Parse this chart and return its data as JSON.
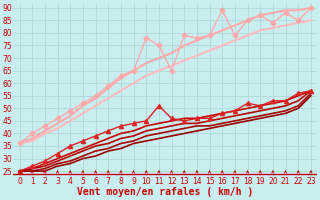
{
  "title": "",
  "xlabel": "Vent moyen/en rafales ( km/h )",
  "ylabel": "",
  "background_color": "#c8eef0",
  "grid_color": "#b0d8da",
  "xlim": [
    -0.5,
    23.5
  ],
  "ylim": [
    23,
    92
  ],
  "yticks": [
    25,
    30,
    35,
    40,
    45,
    50,
    55,
    60,
    65,
    70,
    75,
    80,
    85,
    90
  ],
  "xticks": [
    0,
    1,
    2,
    3,
    4,
    5,
    6,
    7,
    8,
    9,
    10,
    11,
    12,
    13,
    14,
    15,
    16,
    17,
    18,
    19,
    20,
    21,
    22,
    23
  ],
  "lines": [
    {
      "x": [
        0,
        1,
        2,
        3,
        4,
        5,
        6,
        7,
        8,
        9,
        10,
        11,
        12,
        13,
        14,
        15,
        16,
        17,
        18,
        19,
        20,
        21,
        22,
        23
      ],
      "y": [
        36,
        40,
        43,
        46,
        49,
        52,
        55,
        59,
        63,
        65,
        78,
        75,
        65,
        79,
        78,
        79,
        89,
        79,
        85,
        87,
        84,
        88,
        85,
        90
      ],
      "color": "#ffaaaa",
      "linewidth": 1.0,
      "marker": "D",
      "markersize": 2.5
    },
    {
      "x": [
        0,
        1,
        2,
        3,
        4,
        5,
        6,
        7,
        8,
        9,
        10,
        11,
        12,
        13,
        14,
        15,
        16,
        17,
        18,
        19,
        20,
        21,
        22,
        23
      ],
      "y": [
        36,
        38,
        41,
        44,
        47,
        51,
        54,
        58,
        62,
        65,
        68,
        70,
        72,
        75,
        77,
        79,
        81,
        83,
        85,
        87,
        88,
        89,
        89,
        90
      ],
      "color": "#ffaaaa",
      "linewidth": 1.5,
      "marker": null,
      "markersize": 0
    },
    {
      "x": [
        0,
        1,
        2,
        3,
        4,
        5,
        6,
        7,
        8,
        9,
        10,
        11,
        12,
        13,
        14,
        15,
        16,
        17,
        18,
        19,
        20,
        21,
        22,
        23
      ],
      "y": [
        36,
        37,
        40,
        42,
        45,
        48,
        51,
        54,
        57,
        60,
        63,
        65,
        67,
        69,
        71,
        73,
        75,
        77,
        79,
        81,
        82,
        83,
        84,
        85
      ],
      "color": "#ffbbbb",
      "linewidth": 1.5,
      "marker": null,
      "markersize": 0
    },
    {
      "x": [
        0,
        1,
        2,
        3,
        4,
        5,
        6,
        7,
        8,
        9,
        10,
        11,
        12,
        13,
        14,
        15,
        16,
        17,
        18,
        19,
        20,
        21,
        22,
        23
      ],
      "y": [
        25,
        27,
        29,
        32,
        35,
        37,
        39,
        41,
        43,
        44,
        45,
        51,
        46,
        45,
        46,
        46,
        48,
        49,
        52,
        51,
        53,
        53,
        56,
        57
      ],
      "color": "#dd2222",
      "linewidth": 1.0,
      "marker": "^",
      "markersize": 3
    },
    {
      "x": [
        0,
        1,
        2,
        3,
        4,
        5,
        6,
        7,
        8,
        9,
        10,
        11,
        12,
        13,
        14,
        15,
        16,
        17,
        18,
        19,
        20,
        21,
        22,
        23
      ],
      "y": [
        25,
        26,
        28,
        30,
        32,
        34,
        36,
        38,
        40,
        41,
        43,
        44,
        45,
        46,
        46,
        47,
        48,
        49,
        50,
        51,
        52,
        53,
        55,
        57
      ],
      "color": "#cc0000",
      "linewidth": 1.2,
      "marker": null,
      "markersize": 0
    },
    {
      "x": [
        0,
        1,
        2,
        3,
        4,
        5,
        6,
        7,
        8,
        9,
        10,
        11,
        12,
        13,
        14,
        15,
        16,
        17,
        18,
        19,
        20,
        21,
        22,
        23
      ],
      "y": [
        25,
        26,
        27,
        29,
        31,
        33,
        35,
        36,
        38,
        39,
        41,
        42,
        43,
        44,
        44,
        45,
        46,
        47,
        48,
        49,
        50,
        51,
        53,
        57
      ],
      "color": "#bb0000",
      "linewidth": 1.2,
      "marker": null,
      "markersize": 0
    },
    {
      "x": [
        0,
        1,
        2,
        3,
        4,
        5,
        6,
        7,
        8,
        9,
        10,
        11,
        12,
        13,
        14,
        15,
        16,
        17,
        18,
        19,
        20,
        21,
        22,
        23
      ],
      "y": [
        25,
        25,
        26,
        28,
        29,
        31,
        33,
        34,
        36,
        37,
        39,
        40,
        41,
        42,
        43,
        43,
        44,
        45,
        46,
        47,
        48,
        49,
        51,
        56
      ],
      "color": "#aa0000",
      "linewidth": 1.2,
      "marker": null,
      "markersize": 0
    },
    {
      "x": [
        0,
        1,
        2,
        3,
        4,
        5,
        6,
        7,
        8,
        9,
        10,
        11,
        12,
        13,
        14,
        15,
        16,
        17,
        18,
        19,
        20,
        21,
        22,
        23
      ],
      "y": [
        25,
        25,
        25,
        27,
        28,
        30,
        31,
        33,
        34,
        36,
        37,
        38,
        39,
        40,
        41,
        42,
        43,
        44,
        45,
        46,
        47,
        48,
        50,
        55
      ],
      "color": "#990000",
      "linewidth": 1.2,
      "marker": null,
      "markersize": 0
    }
  ],
  "arrow_color": "#cc0000",
  "tick_label_color": "#cc0000",
  "xlabel_color": "#cc0000",
  "xlabel_fontsize": 7,
  "tick_fontsize": 5.5
}
